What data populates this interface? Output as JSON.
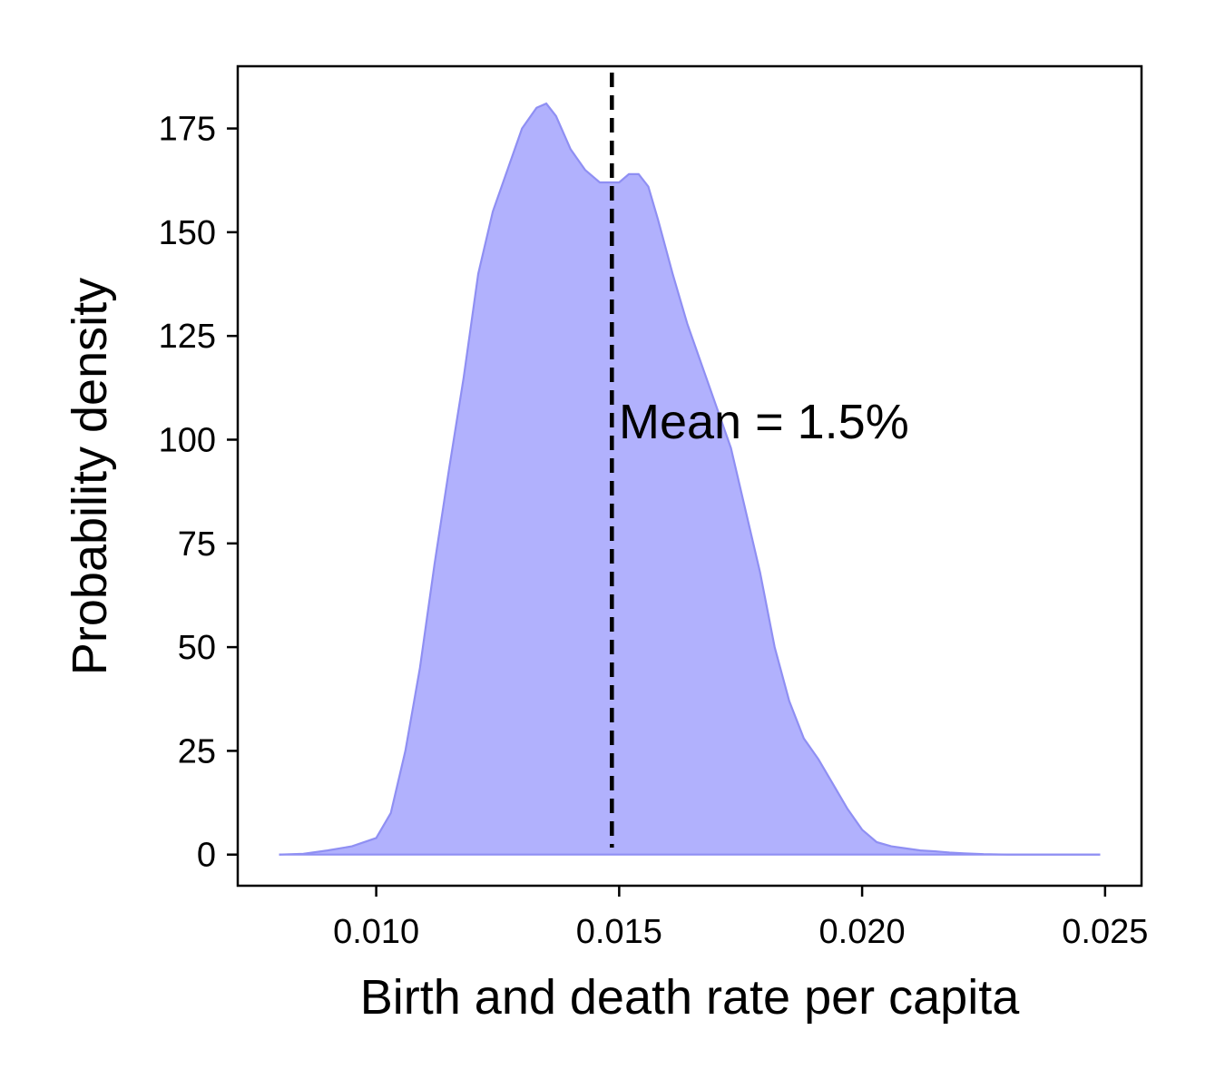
{
  "chart_data": {
    "type": "area",
    "title": "",
    "xlabel": "Birth and death rate per capita",
    "ylabel": "Probability density",
    "xlim": [
      0.00715,
      0.02575
    ],
    "ylim": [
      -7.5,
      190
    ],
    "xticks": [
      0.01,
      0.015,
      0.02,
      0.025
    ],
    "xtick_labels": [
      "0.010",
      "0.015",
      "0.020",
      "0.025"
    ],
    "yticks": [
      0,
      25,
      50,
      75,
      100,
      125,
      150,
      175
    ],
    "ytick_labels": [
      "0",
      "25",
      "50",
      "75",
      "100",
      "125",
      "150",
      "175"
    ],
    "grid": false,
    "fill_color": "#b1b1fd",
    "line_color": "#8f8ff3",
    "mean_line_color": "#000000",
    "mean_x": 0.01485,
    "annotation": "Mean = 1.5%",
    "series": [
      {
        "x": [
          0.008,
          0.0085,
          0.009,
          0.0095,
          0.01,
          0.0103,
          0.0106,
          0.0109,
          0.0112,
          0.0115,
          0.0118,
          0.0121,
          0.0124,
          0.0127,
          0.013,
          0.0133,
          0.0135,
          0.0137,
          0.014,
          0.0143,
          0.0146,
          0.0148,
          0.015,
          0.0152,
          0.0154,
          0.0156,
          0.0158,
          0.0161,
          0.0164,
          0.0167,
          0.017,
          0.0173,
          0.0176,
          0.0179,
          0.0182,
          0.0185,
          0.0188,
          0.0191,
          0.0194,
          0.0197,
          0.02,
          0.0203,
          0.0206,
          0.0209,
          0.0212,
          0.0215,
          0.0218,
          0.0221,
          0.0225,
          0.023,
          0.024,
          0.0249
        ],
        "y": [
          0,
          0.2,
          1,
          2,
          4,
          10,
          25,
          45,
          70,
          93,
          115,
          140,
          155,
          165,
          175,
          180,
          181,
          178,
          170,
          165,
          162,
          162,
          162,
          164,
          164,
          161,
          153,
          140,
          128,
          118,
          108,
          98,
          83,
          68,
          50,
          37,
          28,
          23,
          17,
          11,
          6,
          3,
          2,
          1.5,
          1,
          0.8,
          0.5,
          0.3,
          0.1,
          0,
          0,
          0
        ]
      }
    ]
  }
}
